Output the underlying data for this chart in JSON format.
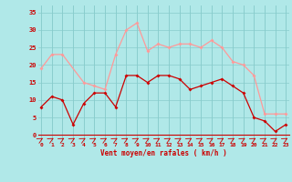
{
  "x": [
    0,
    1,
    2,
    3,
    4,
    5,
    6,
    7,
    8,
    9,
    10,
    11,
    12,
    13,
    14,
    15,
    16,
    17,
    18,
    19,
    20,
    21,
    22,
    23
  ],
  "rafales": [
    19,
    23,
    23,
    null,
    15,
    14,
    13,
    23,
    30,
    32,
    24,
    26,
    25,
    26,
    26,
    25,
    27,
    25,
    21,
    20,
    17,
    6,
    6,
    6
  ],
  "moyen": [
    8,
    11,
    10,
    3,
    9,
    12,
    12,
    8,
    17,
    17,
    15,
    17,
    17,
    16,
    13,
    14,
    15,
    16,
    14,
    12,
    5,
    4,
    1,
    3
  ],
  "bg_color": "#b0e8e8",
  "grid_color": "#88cccc",
  "rafales_color": "#ff9999",
  "moyen_color": "#cc0000",
  "xlabel": "Vent moyen/en rafales ( km/h )",
  "yticks": [
    0,
    5,
    10,
    15,
    20,
    25,
    30,
    35
  ],
  "ylim": [
    -2,
    37
  ],
  "xlim": [
    -0.3,
    23.3
  ]
}
